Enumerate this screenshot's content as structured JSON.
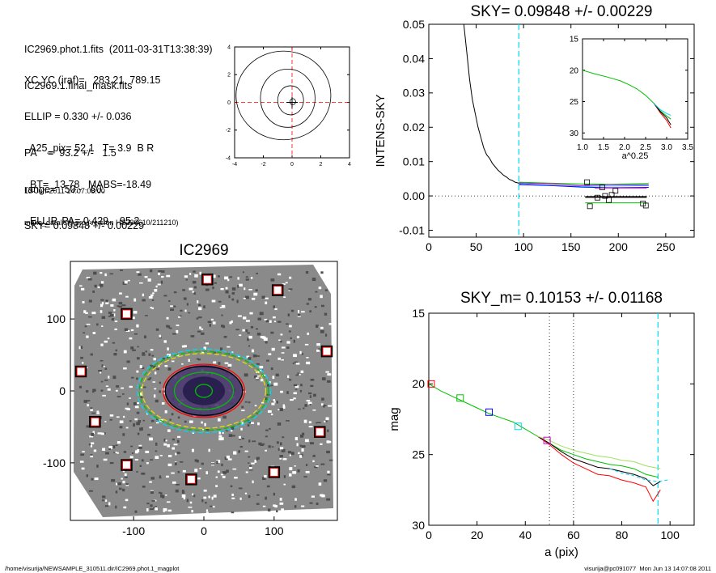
{
  "header": {
    "lines_a": [
      "IC2969.phot.1.fits  (2011-03-31T13:38:39)",
      "IC2969.1.final_mask.fits"
    ],
    "lines_b": [
      "XC,YC (iraf)=   283.21, 789.15",
      "ELLIP = 0.330 +/- 0.036",
      "PA    =  93.2 +/-   1.5",
      "range=   50.-   60.",
      "SKY= 0.09848 +/- 0.00229"
    ],
    "lines_c": [
      "  A25_pix= 52.1   T= 3.9  B R",
      "  BT=  13.78   MABS=-18.49",
      "  ELLIP, PA= 0.429    95.2"
    ],
    "date": "13-Jun-2011 14:07:08.00",
    "program": "make_datalist0.pro (version HS230610/211210)"
  },
  "footer": {
    "path": "/home/visurija/NEWSAMPLE_310511.dir/IC2969.phot.1_magplot",
    "user": "visurija@pc091077  Mon Jun 13 14:07:08 2011"
  },
  "colors": {
    "profile": "#000000",
    "cyan": "#00d8f0",
    "green": "#00c000",
    "red": "#ff0000",
    "blue": "#0000ff",
    "magenta": "#d000d0",
    "galaxy": "#4a3a6e",
    "noise": "#808080"
  },
  "chart_data": [
    {
      "id": "contour",
      "type": "contour",
      "xticks": [
        "-4",
        "-2",
        "0",
        "2",
        "4"
      ],
      "yticks": [
        "-4",
        "-2",
        "0",
        "2",
        "4"
      ],
      "xlim": [
        -4,
        4
      ],
      "ylim": [
        -4,
        4
      ],
      "levels": [
        {
          "rx": 0.2,
          "ry": 0.22,
          "cx": 0.05,
          "cy": 0.05
        },
        {
          "rx": 0.9,
          "ry": 1.05,
          "cx": -0.1,
          "cy": 0.15
        },
        {
          "rx": 1.9,
          "ry": 2.1,
          "cx": -0.3,
          "cy": 0.3
        },
        {
          "rx": 3.3,
          "ry": 3.2,
          "cx": -0.6,
          "cy": 0.5
        }
      ]
    },
    {
      "id": "sky",
      "type": "line",
      "title": "SKY= 0.09848 +/- 0.00229",
      "ylabel": "INTENS-SKY",
      "xlim": [
        0,
        280
      ],
      "ylim": [
        -0.012,
        0.05
      ],
      "xticks": [
        "0",
        "50",
        "100",
        "150",
        "200",
        "250"
      ],
      "yticks": [
        "-0.01",
        "0.00",
        "0.01",
        "0.02",
        "0.03",
        "0.04",
        "0.05"
      ],
      "series": [
        {
          "x": [
            37,
            40,
            43,
            46,
            49,
            52,
            55,
            58,
            61,
            64,
            67,
            70,
            73,
            76,
            79,
            82,
            85,
            88,
            91,
            94,
            97,
            100
          ],
          "y": [
            0.05,
            0.042,
            0.034,
            0.028,
            0.024,
            0.02,
            0.017,
            0.014,
            0.012,
            0.011,
            0.0095,
            0.0085,
            0.0075,
            0.0068,
            0.006,
            0.0055,
            0.0048,
            0.0045,
            0.004,
            0.0038,
            0.0035,
            0.0036
          ]
        },
        {
          "x": [
            95,
            130,
            160,
            190,
            232
          ],
          "y": [
            0.0036,
            0.003,
            0.0028,
            0.0029,
            0.003
          ]
        },
        {
          "x": [
            95,
            130,
            160,
            190,
            232
          ],
          "y": [
            0.004,
            0.0037,
            0.0035,
            0.0034,
            0.0036
          ]
        },
        {
          "x": [
            95,
            130,
            160,
            190,
            232
          ],
          "y": [
            0.0033,
            0.003,
            0.0026,
            0.0024,
            0.0025
          ]
        },
        {
          "x": [
            95,
            130,
            160,
            190,
            232
          ],
          "y": [
            0.0038,
            0.0035,
            0.003,
            0.0033,
            0.0032
          ]
        },
        {
          "x": [
            175,
            230
          ],
          "y": [
            0.0023,
            0.0023
          ]
        },
        {
          "x": [
            165,
            230
          ],
          "y": [
            -0.0003,
            -0.0003
          ]
        },
        {
          "x": [
            165,
            230
          ],
          "y": [
            -0.002,
            -0.002
          ]
        }
      ],
      "markers": [
        {
          "x": 167,
          "y": 0.004
        },
        {
          "x": 178,
          "y": -0.0005
        },
        {
          "x": 183,
          "y": 0.0025
        },
        {
          "x": 186,
          "y": 0.0
        },
        {
          "x": 190,
          "y": -0.0012
        },
        {
          "x": 193,
          "y": 0.0003
        },
        {
          "x": 197,
          "y": 0.0015
        },
        {
          "x": 170,
          "y": -0.003
        },
        {
          "x": 226,
          "y": -0.0022
        },
        {
          "x": 229,
          "y": -0.0028
        }
      ],
      "vline": 95,
      "hline": 0,
      "inset": {
        "xlabel": "a^0.25",
        "xlim": [
          1.0,
          3.5
        ],
        "ylim": [
          15,
          31
        ],
        "xticks": [
          "1.0",
          "1.5",
          "2.0",
          "2.5",
          "3.0",
          "3.5"
        ],
        "yticks": [
          "15",
          "20",
          "25",
          "30"
        ],
        "series": [
          {
            "x": [
              1.0,
              1.3,
              1.6,
              1.9,
              2.1,
              2.3,
              2.5,
              2.7,
              2.85,
              3.0,
              3.1
            ],
            "y": [
              20.0,
              20.6,
              21.1,
              21.7,
              22.3,
              23.0,
              24.0,
              25.3,
              26.5,
              27.3,
              27.8
            ]
          },
          {
            "x": [
              2.7,
              2.85,
              3.0,
              3.1
            ],
            "y": [
              25.3,
              26.8,
              28.0,
              29.2
            ]
          },
          {
            "x": [
              2.7,
              2.85,
              3.0,
              3.1
            ],
            "y": [
              25.3,
              26.6,
              27.6,
              28.7
            ]
          },
          {
            "x": [
              2.7,
              2.85,
              3.0,
              3.1
            ],
            "y": [
              25.3,
              26.3,
              26.9,
              27.2
            ]
          }
        ]
      }
    },
    {
      "id": "image",
      "type": "image",
      "title": "IC2969",
      "xlim": [
        -190,
        190
      ],
      "ylim": [
        -180,
        180
      ],
      "xticks": [
        "-100",
        "0",
        "100"
      ],
      "yticks": [
        "-100",
        "0",
        "100"
      ],
      "stars": [
        {
          "x": 5,
          "y": 155
        },
        {
          "x": 105,
          "y": 140
        },
        {
          "x": -110,
          "y": 107
        },
        {
          "x": 175,
          "y": 55
        },
        {
          "x": -175,
          "y": 27
        },
        {
          "x": -155,
          "y": -43
        },
        {
          "x": 165,
          "y": -57
        },
        {
          "x": -110,
          "y": -103
        },
        {
          "x": 100,
          "y": -113
        },
        {
          "x": -18,
          "y": -123
        }
      ],
      "ellipses": [
        {
          "rx": 95,
          "ry": 58,
          "color": "#00d8f0",
          "dash": true
        },
        {
          "rx": 92,
          "ry": 55,
          "color": "#00c000",
          "dash": true
        },
        {
          "rx": 88,
          "ry": 52,
          "color": "#e0e000",
          "dash": true
        },
        {
          "rx": 58,
          "ry": 37,
          "color": "#ff0000",
          "dash": false
        },
        {
          "rx": 55,
          "ry": 34,
          "color": "#000000",
          "dash": false
        },
        {
          "rx": 42,
          "ry": 26,
          "color": "#00c000",
          "dash": false
        },
        {
          "rx": 12,
          "ry": 9,
          "color": "#00c000",
          "dash": false
        }
      ]
    },
    {
      "id": "mag",
      "type": "line",
      "title": "SKY_m=  0.10153 +/- 0.01168",
      "xlabel": "a (pix)",
      "ylabel": "mag",
      "xlim": [
        0,
        110
      ],
      "ylim": [
        30,
        15
      ],
      "xticks": [
        "0",
        "20",
        "40",
        "60",
        "80",
        "100"
      ],
      "yticks": [
        "15",
        "20",
        "25",
        "30"
      ],
      "series": [
        {
          "x": [
            0,
            5,
            10,
            15,
            20,
            25,
            30,
            35,
            40,
            45,
            50,
            55,
            60,
            65,
            70,
            75,
            80,
            85,
            90,
            95
          ],
          "y": [
            20.0,
            20.5,
            20.9,
            21.3,
            21.7,
            22.1,
            22.4,
            22.7,
            23.2,
            23.7,
            24.2,
            24.7,
            25.0,
            25.3,
            25.5,
            25.7,
            25.8,
            26.0,
            26.4,
            26.6
          ]
        },
        {
          "x": [
            45,
            50,
            55,
            60,
            65,
            70,
            75,
            80,
            85,
            90,
            93,
            96
          ],
          "y": [
            23.7,
            24.3,
            25.0,
            25.6,
            26.0,
            26.4,
            26.5,
            26.8,
            27.0,
            27.3,
            28.3,
            27.5
          ]
        },
        {
          "x": [
            45,
            50,
            55,
            60,
            65,
            70,
            75,
            80,
            85,
            90,
            93,
            96
          ],
          "y": [
            23.7,
            24.2,
            24.8,
            25.3,
            25.6,
            25.9,
            26.0,
            26.2,
            26.4,
            26.7,
            27.2,
            26.9
          ]
        },
        {
          "x": [
            45,
            50,
            55,
            60,
            65,
            70,
            75,
            80,
            85,
            90,
            96
          ],
          "y": [
            23.7,
            24.0,
            24.4,
            24.7,
            24.9,
            25.1,
            25.2,
            25.4,
            25.5,
            25.8,
            26.0
          ]
        },
        {
          "x": [
            75,
            80,
            85,
            90,
            95,
            99
          ],
          "y": [
            26.0,
            26.3,
            26.5,
            26.8,
            26.9,
            26.8
          ]
        }
      ],
      "markers": [
        {
          "x": 1,
          "y": 20.0,
          "color": "#ff0000"
        },
        {
          "x": 13,
          "y": 21.0,
          "color": "#00c000"
        },
        {
          "x": 25,
          "y": 22.0,
          "color": "#0000ff"
        },
        {
          "x": 37,
          "y": 23.0,
          "color": "#00d8f0"
        },
        {
          "x": 49,
          "y": 24.0,
          "color": "#d000d0"
        }
      ],
      "vlines": [
        50,
        60
      ],
      "cyan_vline": 95
    }
  ]
}
